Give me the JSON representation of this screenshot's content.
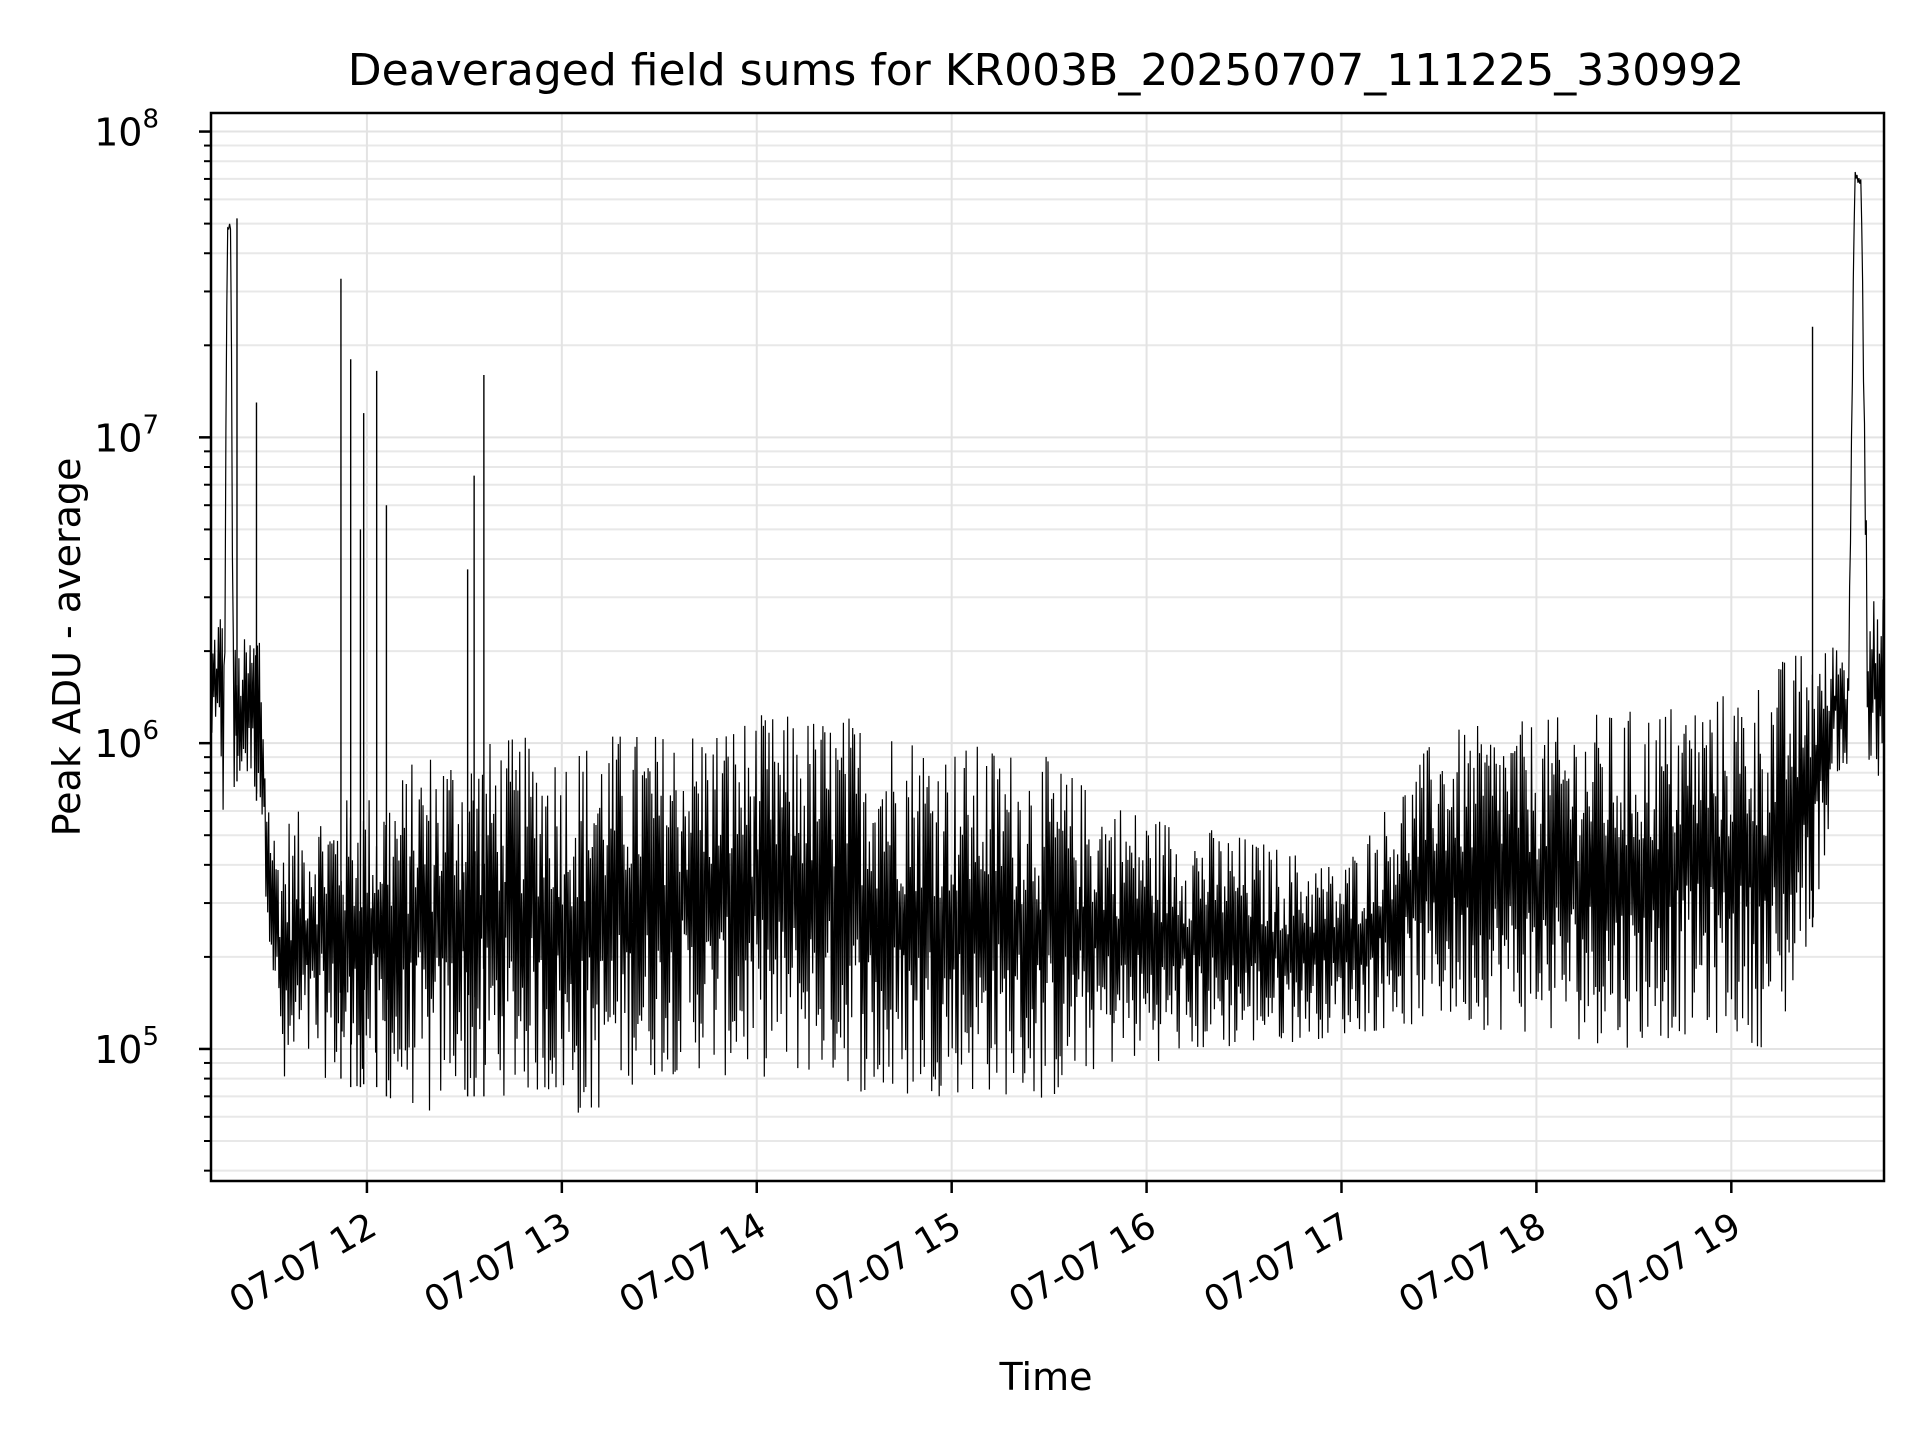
{
  "chart_data": {
    "type": "line",
    "title": "Deaveraged field sums for KR003B_20250707_111225_330992",
    "xlabel": "Time",
    "ylabel": "Peak ADU - average",
    "y_scale": "log",
    "y_tick_labels": [
      {
        "base": "10",
        "exp": "5",
        "value": 100000
      },
      {
        "base": "10",
        "exp": "6",
        "value": 1000000
      },
      {
        "base": "10",
        "exp": "7",
        "value": 10000000
      },
      {
        "base": "10",
        "exp": "8",
        "value": 100000000
      }
    ],
    "x_tick_labels": [
      {
        "label": "07-07 12",
        "time": "2025-07-07T12:00"
      },
      {
        "label": "07-07 13",
        "time": "2025-07-07T13:00"
      },
      {
        "label": "07-07 14",
        "time": "2025-07-07T14:00"
      },
      {
        "label": "07-07 15",
        "time": "2025-07-07T15:00"
      },
      {
        "label": "07-07 16",
        "time": "2025-07-07T16:00"
      },
      {
        "label": "07-07 17",
        "time": "2025-07-07T17:00"
      },
      {
        "label": "07-07 18",
        "time": "2025-07-07T18:00"
      },
      {
        "label": "07-07 19",
        "time": "2025-07-07T19:00"
      }
    ],
    "xlim": [
      "2025-07-07T11:12",
      "2025-07-07T19:47"
    ],
    "ylim": [
      37000,
      115000000
    ],
    "grid": true,
    "line_color": "#000000",
    "series": [
      {
        "x": [
          "2025-07-07T11:12",
          "2025-07-07T11:13",
          "2025-07-07T11:15",
          "2025-07-07T11:16",
          "2025-07-07T11:17",
          "2025-07-07T11:18",
          "2025-07-07T11:19",
          "2025-07-07T11:20",
          "2025-07-07T11:22",
          "2025-07-07T11:24",
          "2025-07-07T11:25",
          "2025-07-07T11:27",
          "2025-07-07T11:29",
          "2025-07-07T11:31",
          "2025-07-07T11:33",
          "2025-07-07T11:35",
          "2025-07-07T11:37",
          "2025-07-07T11:39",
          "2025-07-07T11:41",
          "2025-07-07T11:43",
          "2025-07-07T11:46",
          "2025-07-07T11:48",
          "2025-07-07T11:51",
          "2025-07-07T11:53",
          "2025-07-07T11:55",
          "2025-07-07T11:58",
          "2025-07-07T12:01",
          "2025-07-07T12:03",
          "2025-07-07T12:06",
          "2025-07-07T12:10",
          "2025-07-07T12:15",
          "2025-07-07T12:20",
          "2025-07-07T12:25",
          "2025-07-07T12:28",
          "2025-07-07T12:30",
          "2025-07-07T12:33",
          "2025-07-07T12:35",
          "2025-07-07T12:40",
          "2025-07-07T12:50",
          "2025-07-07T13:00",
          "2025-07-07T13:08",
          "2025-07-07T13:15",
          "2025-07-07T13:20",
          "2025-07-07T13:30",
          "2025-07-07T13:40",
          "2025-07-07T13:50",
          "2025-07-07T14:00",
          "2025-07-07T14:20",
          "2025-07-07T14:30",
          "2025-07-07T14:40",
          "2025-07-07T14:50",
          "2025-07-07T15:00",
          "2025-07-07T15:15",
          "2025-07-07T15:30",
          "2025-07-07T15:45",
          "2025-07-07T16:00",
          "2025-07-07T16:30",
          "2025-07-07T17:00",
          "2025-07-07T17:30",
          "2025-07-07T18:00",
          "2025-07-07T18:30",
          "2025-07-07T18:45",
          "2025-07-07T19:00",
          "2025-07-07T19:10",
          "2025-07-07T19:15",
          "2025-07-07T19:20",
          "2025-07-07T19:25",
          "2025-07-07T19:30",
          "2025-07-07T19:32",
          "2025-07-07T19:34",
          "2025-07-07T19:36",
          "2025-07-07T19:38",
          "2025-07-07T19:40",
          "2025-07-07T19:42",
          "2025-07-07T19:44",
          "2025-07-07T19:47"
        ],
        "lo": [
          1000000,
          900000,
          800000,
          450000,
          45000000,
          50000000,
          550000,
          750000,
          750000,
          700000,
          700000,
          600000,
          300000,
          170000,
          90000,
          55000,
          70000,
          80000,
          80000,
          80000,
          80000,
          80000,
          80000,
          80000,
          75000,
          75000,
          80000,
          75000,
          70000,
          60000,
          65000,
          55000,
          70000,
          75000,
          70000,
          70000,
          70000,
          70000,
          70000,
          65000,
          55000,
          70000,
          75000,
          80000,
          85000,
          80000,
          80000,
          80000,
          75000,
          60000,
          70000,
          70000,
          70000,
          65000,
          85000,
          90000,
          100000,
          110000,
          120000,
          110000,
          100000,
          110000,
          110000,
          100000,
          100000,
          160000,
          250000,
          500000,
          800000,
          800000,
          800000,
          70000000,
          65000000,
          700000,
          800000,
          550000
        ],
        "hi": [
          2000000,
          2500000,
          3000000,
          2400000,
          48000000,
          52000000,
          2200000,
          2000000,
          2200000,
          2300000,
          2400000,
          2600000,
          800000,
          550000,
          500000,
          600000,
          600000,
          600000,
          600000,
          650000,
          650000,
          650000,
          650000,
          650000,
          700000,
          700000,
          700000,
          700000,
          750000,
          800000,
          900000,
          1000000,
          1000000,
          1000000,
          1000000,
          1000000,
          1000000,
          1050000,
          1050000,
          1000000,
          1050000,
          1100000,
          1100000,
          1100000,
          1150000,
          1200000,
          1250000,
          1250000,
          1250000,
          1200000,
          1100000,
          1000000,
          1000000,
          900000,
          700000,
          600000,
          500000,
          400000,
          1100000,
          1200000,
          1300000,
          1400000,
          1500000,
          1700000,
          1900000,
          2000000,
          2200000,
          2000000,
          2300000,
          2200000,
          2000000,
          75000000,
          72000000,
          3500000,
          3000000,
          3000000
        ],
        "spikes": [
          {
            "x": "2025-07-07T11:20",
            "value": 52000000
          },
          {
            "x": "2025-07-07T11:26",
            "value": 13000000
          },
          {
            "x": "2025-07-07T11:52",
            "value": 33000000
          },
          {
            "x": "2025-07-07T11:55",
            "value": 18000000
          },
          {
            "x": "2025-07-07T11:58",
            "value": 5000000
          },
          {
            "x": "2025-07-07T11:59",
            "value": 12000000
          },
          {
            "x": "2025-07-07T12:03",
            "value": 16500000
          },
          {
            "x": "2025-07-07T12:06",
            "value": 6000000
          },
          {
            "x": "2025-07-07T12:31",
            "value": 3700000
          },
          {
            "x": "2025-07-07T12:33",
            "value": 7500000
          },
          {
            "x": "2025-07-07T12:36",
            "value": 16000000
          },
          {
            "x": "2025-07-07T19:25",
            "value": 23000000
          }
        ]
      }
    ]
  }
}
